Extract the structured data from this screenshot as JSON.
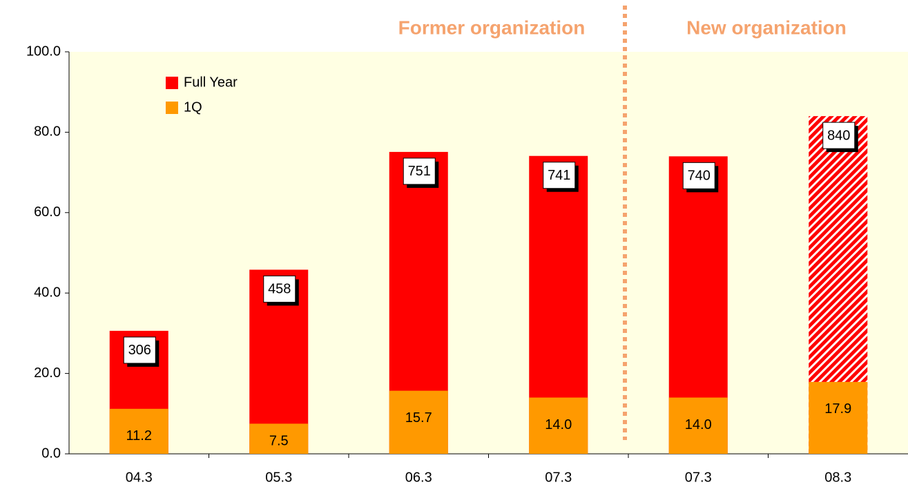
{
  "chart_data": {
    "type": "bar",
    "annotations": [
      "Former organization",
      "New organization"
    ],
    "categories": [
      "04.3",
      "05.3",
      "06.3",
      "07.3",
      "07.3",
      "08.3"
    ],
    "series": [
      {
        "name": "Full Year",
        "color": "#ff0000",
        "values": [
          30.6,
          45.8,
          75.1,
          74.1,
          74.0,
          84.0
        ],
        "value_labels": [
          "306",
          "458",
          "751",
          "741",
          "740",
          "840"
        ],
        "hatch": [
          false,
          false,
          false,
          false,
          false,
          true
        ]
      },
      {
        "name": "1Q",
        "color": "#ff9900",
        "values": [
          11.2,
          7.5,
          15.7,
          14.0,
          14.0,
          17.9
        ],
        "value_labels": [
          "11.2",
          "7.5",
          "15.7",
          "14.0",
          "14.0",
          "17.9"
        ]
      }
    ],
    "ylim": [
      0,
      100
    ],
    "yticks": [
      {
        "value": 0,
        "label": "0.0"
      },
      {
        "value": 20,
        "label": "20.0"
      },
      {
        "value": 40,
        "label": "40.0"
      },
      {
        "value": 60,
        "label": "60.0"
      },
      {
        "value": 80,
        "label": "80.0"
      },
      {
        "value": 100,
        "label": "100.0"
      }
    ],
    "plot_background": "#ffffe3"
  }
}
